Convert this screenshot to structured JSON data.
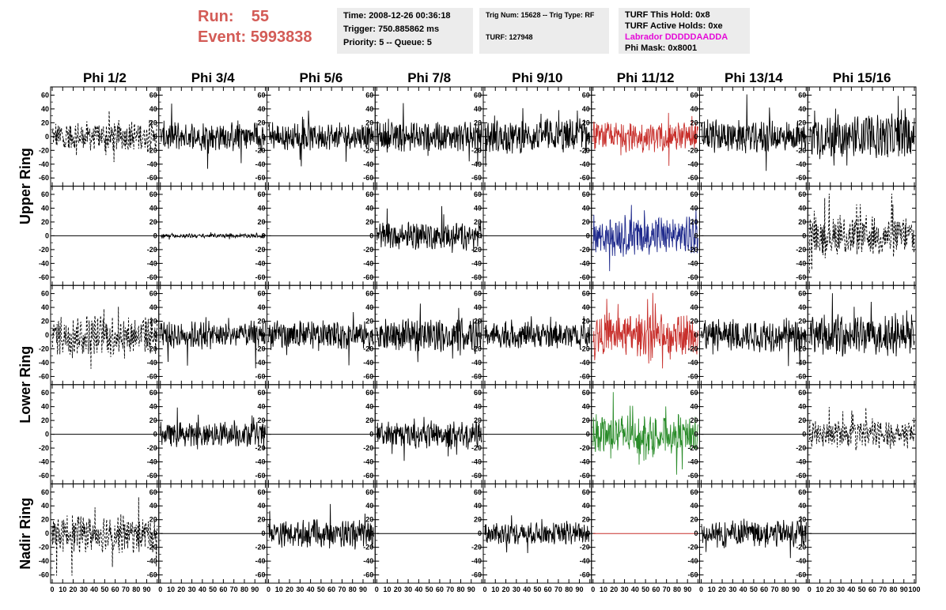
{
  "header": {
    "run_label": "Run:",
    "run_value": "55",
    "event_label": "Event:",
    "event_value": "5993838"
  },
  "info_time": {
    "time": "Time: 2008-12-26 00:36:18",
    "trigger": "Trigger: 750.885862 ms",
    "priority": "Priority: 5 -- Queue: 5"
  },
  "info_trig": {
    "trig": "Trig Num: 15628 -- Trig Type: RF",
    "turf": "TURF: 127948"
  },
  "info_turf": {
    "hold": "TURF This Hold: 0x8",
    "active": "TURF Active Holds: 0xe",
    "labrador": "Labrador DDDDDAADDA",
    "mask": "Phi Mask: 0x8001"
  },
  "colors": {
    "red": "#c8302c",
    "blue": "#1f2a8c",
    "green": "#2a8c2a",
    "black": "#000000",
    "magenta": "#e40ad7",
    "header_red": "#d35b56"
  },
  "chart_data": {
    "type": "line",
    "columns": [
      "Phi 1/2",
      "Phi 3/4",
      "Phi 5/6",
      "Phi 7/8",
      "Phi 9/10",
      "Phi 11/12",
      "Phi 13/14",
      "Phi 15/16"
    ],
    "rows": [
      "Upper Ring",
      "Lower Ring",
      "Nadir Ring"
    ],
    "xlim": [
      0,
      100
    ],
    "ylim": [
      -65,
      65
    ],
    "x_ticks": [
      0,
      10,
      20,
      30,
      40,
      50,
      60,
      70,
      80,
      90,
      100
    ],
    "x_tick_labels": [
      "0",
      "10",
      "20",
      "30",
      "40",
      "50",
      "60",
      "70",
      "80",
      "90",
      "100"
    ],
    "y_ticks": [
      60,
      40,
      20,
      0,
      -20,
      -40,
      -60
    ],
    "y_tick_labels": [
      "60",
      "40",
      "20",
      "0",
      "-20",
      "-40",
      "-60"
    ],
    "panels": [
      [
        {
          "amp": 22,
          "color": "black",
          "dash": true
        },
        {
          "amp": 22,
          "color": "black",
          "dash": false
        },
        {
          "amp": 20,
          "color": "black",
          "dash": false
        },
        {
          "amp": 22,
          "color": "black",
          "dash": false
        },
        {
          "amp": 26,
          "color": "black",
          "dash": false
        },
        {
          "amp": 22,
          "color": "red",
          "dash": false
        },
        {
          "amp": 24,
          "color": "black",
          "dash": false
        },
        {
          "amp": 32,
          "color": "black",
          "dash": false
        }
      ],
      [
        {
          "amp": 0,
          "color": "black",
          "dash": false
        },
        {
          "amp": 3,
          "color": "black",
          "dash": false
        },
        {
          "amp": 0,
          "color": "black",
          "dash": false
        },
        {
          "amp": 20,
          "color": "black",
          "dash": false
        },
        {
          "amp": 0,
          "color": "black",
          "dash": false
        },
        {
          "amp": 30,
          "color": "blue",
          "dash": false
        },
        {
          "amp": 0,
          "color": "black",
          "dash": false
        },
        {
          "amp": 30,
          "color": "black",
          "dash": true
        }
      ],
      [
        {
          "amp": 30,
          "color": "black",
          "dash": true
        },
        {
          "amp": 20,
          "color": "black",
          "dash": false
        },
        {
          "amp": 22,
          "color": "black",
          "dash": false
        },
        {
          "amp": 24,
          "color": "black",
          "dash": false
        },
        {
          "amp": 20,
          "color": "black",
          "dash": false
        },
        {
          "amp": 30,
          "color": "red",
          "dash": false
        },
        {
          "amp": 24,
          "color": "black",
          "dash": false
        },
        {
          "amp": 30,
          "color": "black",
          "dash": false
        }
      ],
      [
        {
          "amp": 0,
          "color": "black",
          "dash": false
        },
        {
          "amp": 18,
          "color": "black",
          "dash": false
        },
        {
          "amp": 0,
          "color": "black",
          "dash": false
        },
        {
          "amp": 20,
          "color": "black",
          "dash": false
        },
        {
          "amp": 0,
          "color": "black",
          "dash": false
        },
        {
          "amp": 30,
          "color": "green",
          "dash": false
        },
        {
          "amp": 0,
          "color": "black",
          "dash": false
        },
        {
          "amp": 20,
          "color": "black",
          "dash": true
        }
      ],
      [
        {
          "amp": 28,
          "color": "black",
          "dash": true
        },
        {
          "amp": 0,
          "color": "black",
          "dash": false
        },
        {
          "amp": 20,
          "color": "black",
          "dash": false
        },
        {
          "amp": 0,
          "color": "black",
          "dash": false
        },
        {
          "amp": 16,
          "color": "black",
          "dash": false
        },
        {
          "amp": 0,
          "color": "red",
          "dash": false
        },
        {
          "amp": 20,
          "color": "black",
          "dash": false
        },
        {
          "amp": 0,
          "color": "black",
          "dash": false
        }
      ]
    ]
  }
}
